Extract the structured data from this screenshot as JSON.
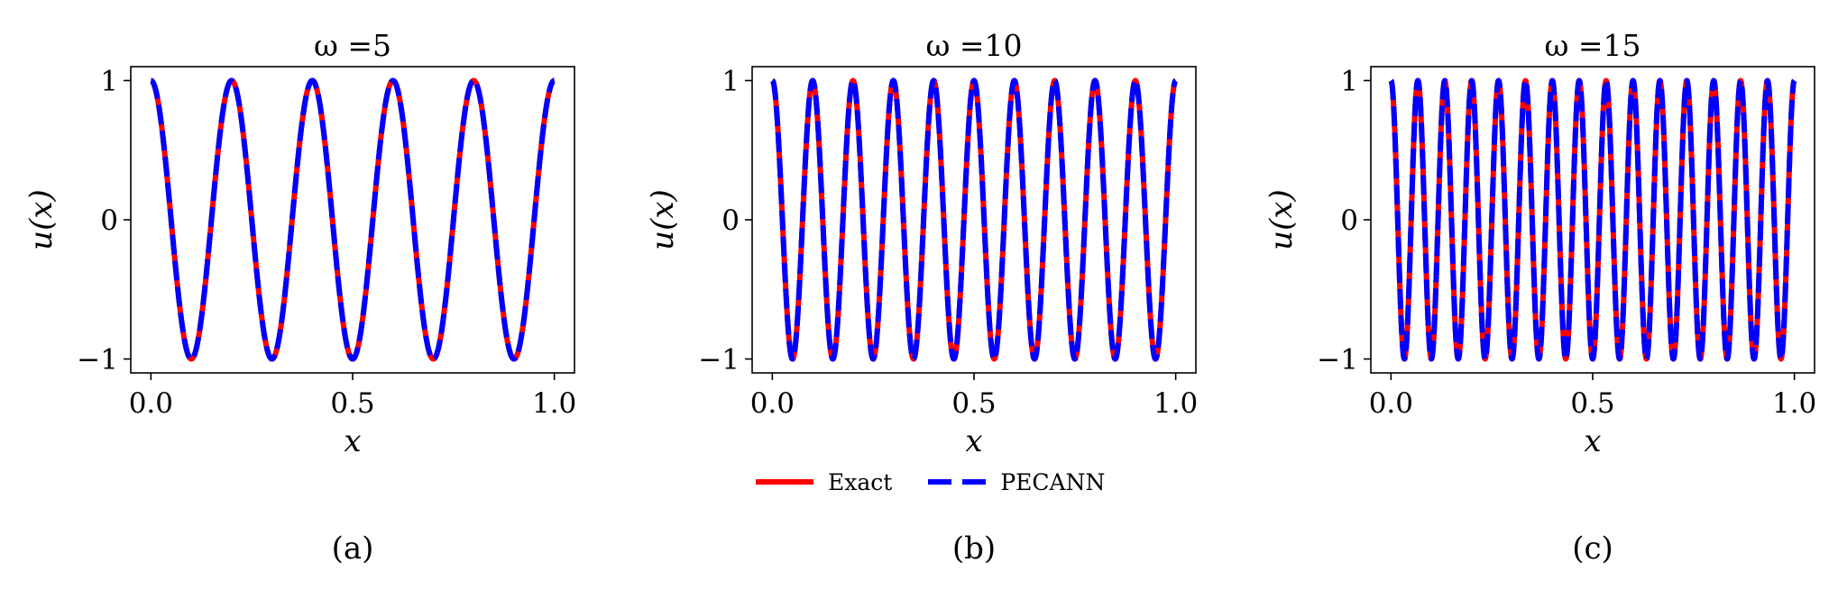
{
  "legend": {
    "exact_label": "Exact",
    "pecann_label": "PECANN",
    "exact_color": "#ff0000",
    "pecann_color": "#0000ff"
  },
  "chart_data": [
    {
      "type": "line",
      "title": "ω =5",
      "omega": 5,
      "function": "cos(2*pi*omega*x)",
      "xlabel": "x",
      "ylabel": "u(x)",
      "xlim": [
        0,
        1
      ],
      "ylim": [
        -1,
        1
      ],
      "xticks": [
        "0.0",
        "0.5",
        "1.0"
      ],
      "yticks": [
        "−1",
        "0",
        "1"
      ],
      "caption": "(a)",
      "grid": false,
      "series": [
        {
          "name": "Exact",
          "style": "solid",
          "color": "#ff0000"
        },
        {
          "name": "PECANN",
          "style": "dashed",
          "color": "#0000ff"
        }
      ]
    },
    {
      "type": "line",
      "title": "ω =10",
      "omega": 10,
      "function": "cos(2*pi*omega*x)",
      "xlabel": "x",
      "ylabel": "u(x)",
      "xlim": [
        0,
        1
      ],
      "ylim": [
        -1,
        1
      ],
      "xticks": [
        "0.0",
        "0.5",
        "1.0"
      ],
      "yticks": [
        "−1",
        "0",
        "1"
      ],
      "caption": "(b)",
      "grid": false,
      "series": [
        {
          "name": "Exact",
          "style": "solid",
          "color": "#ff0000"
        },
        {
          "name": "PECANN",
          "style": "dashed",
          "color": "#0000ff"
        }
      ]
    },
    {
      "type": "line",
      "title": "ω =15",
      "omega": 15,
      "function": "cos(2*pi*omega*x)",
      "xlabel": "x",
      "ylabel": "u(x)",
      "xlim": [
        0,
        1
      ],
      "ylim": [
        -1,
        1
      ],
      "xticks": [
        "0.0",
        "0.5",
        "1.0"
      ],
      "yticks": [
        "−1",
        "0",
        "1"
      ],
      "caption": "(c)",
      "grid": false,
      "series": [
        {
          "name": "Exact",
          "style": "solid",
          "color": "#ff0000"
        },
        {
          "name": "PECANN",
          "style": "dashed",
          "color": "#0000ff"
        }
      ]
    }
  ]
}
